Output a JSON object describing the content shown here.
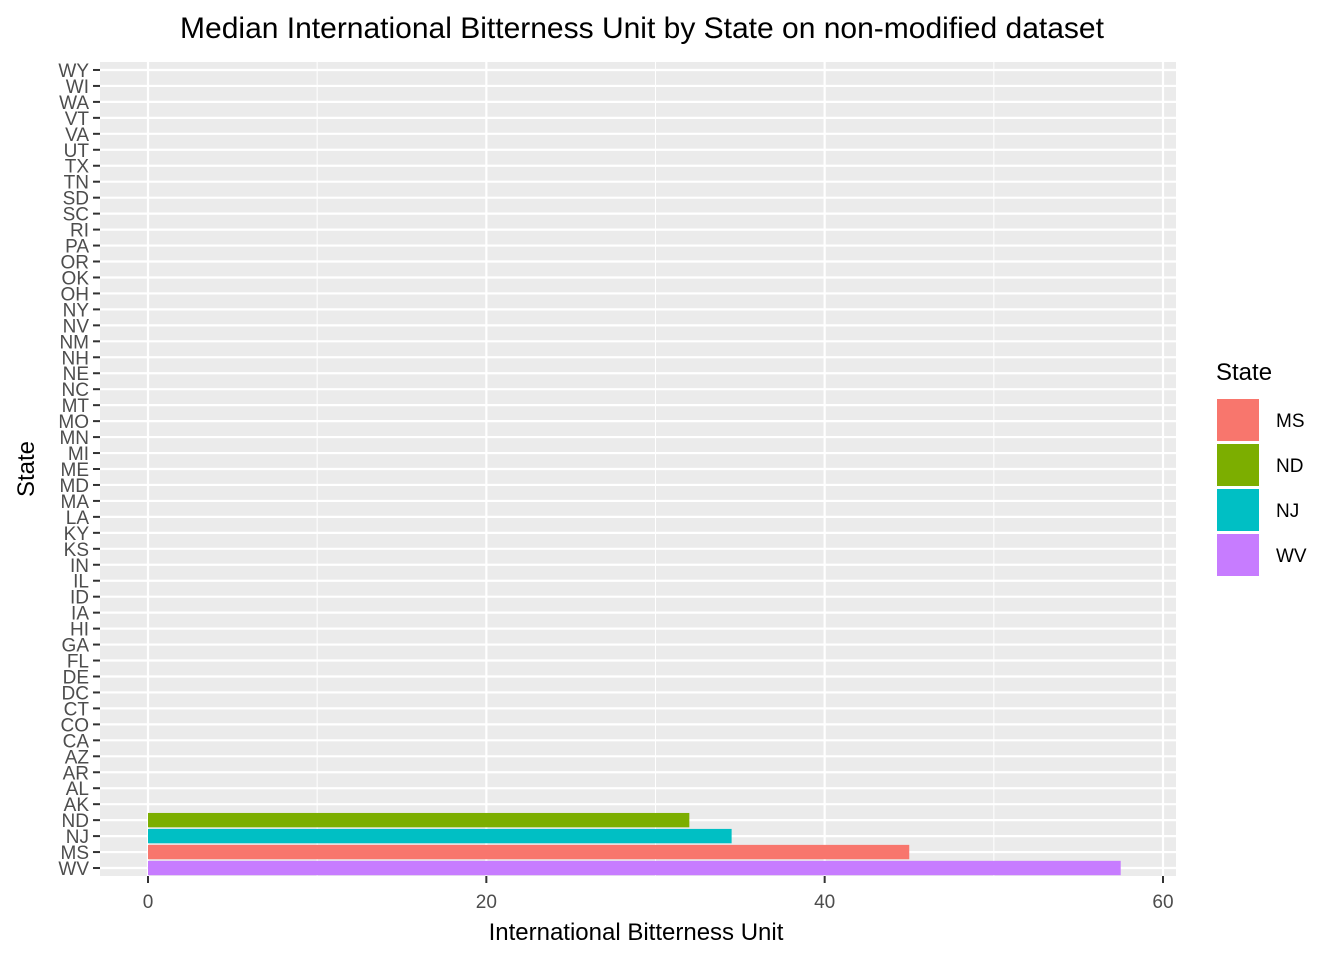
{
  "chart_data": {
    "type": "bar",
    "orientation": "horizontal",
    "title": "Median International Bitterness Unit by State on non-modified dataset",
    "xlabel": "International Bitterness Unit",
    "ylabel": "State",
    "xlim": [
      0,
      60
    ],
    "x_ticks": [
      "0",
      "20",
      "40",
      "60"
    ],
    "grid": true,
    "categories": [
      "WV",
      "MS",
      "NJ",
      "ND",
      "AK",
      "AL",
      "AR",
      "AZ",
      "CA",
      "CO",
      "CT",
      "DC",
      "DE",
      "FL",
      "GA",
      "HI",
      "IA",
      "ID",
      "IL",
      "IN",
      "KS",
      "KY",
      "LA",
      "MA",
      "MD",
      "ME",
      "MI",
      "MN",
      "MO",
      "MT",
      "NC",
      "NE",
      "NH",
      "NM",
      "NV",
      "NY",
      "OH",
      "OK",
      "OR",
      "PA",
      "RI",
      "SC",
      "SD",
      "TN",
      "TX",
      "UT",
      "VA",
      "VT",
      "WA",
      "WI",
      "WY"
    ],
    "bars": [
      {
        "state": "WV",
        "value": 57.5,
        "color": "#C77CFF"
      },
      {
        "state": "MS",
        "value": 45.0,
        "color": "#F8766D"
      },
      {
        "state": "NJ",
        "value": 34.5,
        "color": "#00BFC4"
      },
      {
        "state": "ND",
        "value": 32.0,
        "color": "#7CAE00"
      }
    ],
    "legend": {
      "title": "State",
      "placement": "right",
      "entries": [
        {
          "label": "MS",
          "color": "#F8766D"
        },
        {
          "label": "ND",
          "color": "#7CAE00"
        },
        {
          "label": "NJ",
          "color": "#00BFC4"
        },
        {
          "label": "WV",
          "color": "#C77CFF"
        }
      ]
    },
    "panel_background": "#EBEBEB",
    "grid_color": "#FFFFFF"
  }
}
